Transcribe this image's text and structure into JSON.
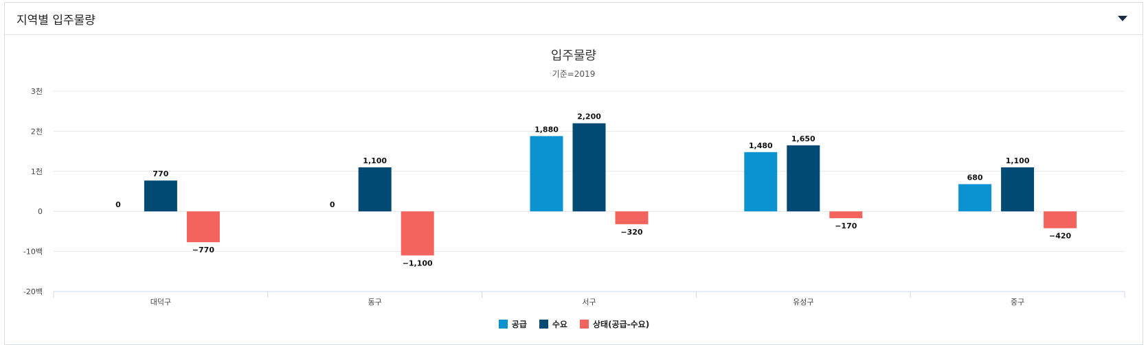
{
  "panel": {
    "title": "지역별 입주물량"
  },
  "chart_data": {
    "type": "bar",
    "title": "입주물량",
    "subtitle": "기준=2019",
    "categories": [
      "대덕구",
      "동구",
      "서구",
      "유성구",
      "중구"
    ],
    "series": [
      {
        "name": "공급",
        "color": "#0b92d0",
        "values": [
          0,
          0,
          1880,
          1480,
          680
        ],
        "labels": [
          "0",
          "0",
          "1,880",
          "1,480",
          "680"
        ]
      },
      {
        "name": "수요",
        "color": "#004a73",
        "values": [
          770,
          1100,
          2200,
          1650,
          1100
        ],
        "labels": [
          "770",
          "1,100",
          "2,200",
          "1,650",
          "1,100"
        ]
      },
      {
        "name": "상태(공급-수요)",
        "color": "#f4645f",
        "values": [
          -770,
          -1100,
          -320,
          -170,
          -420
        ],
        "labels": [
          "−770",
          "−1,100",
          "−320",
          "−170",
          "−420"
        ]
      }
    ],
    "ylim": [
      -2000,
      3000
    ],
    "yticks": [
      {
        "value": 3000,
        "label": "3천"
      },
      {
        "value": 2000,
        "label": "2천"
      },
      {
        "value": 1000,
        "label": "1천"
      },
      {
        "value": 0,
        "label": "0"
      },
      {
        "value": -1000,
        "label": "-10백"
      },
      {
        "value": -2000,
        "label": "-20백"
      }
    ],
    "grid": true,
    "legend_position": "bottom"
  }
}
